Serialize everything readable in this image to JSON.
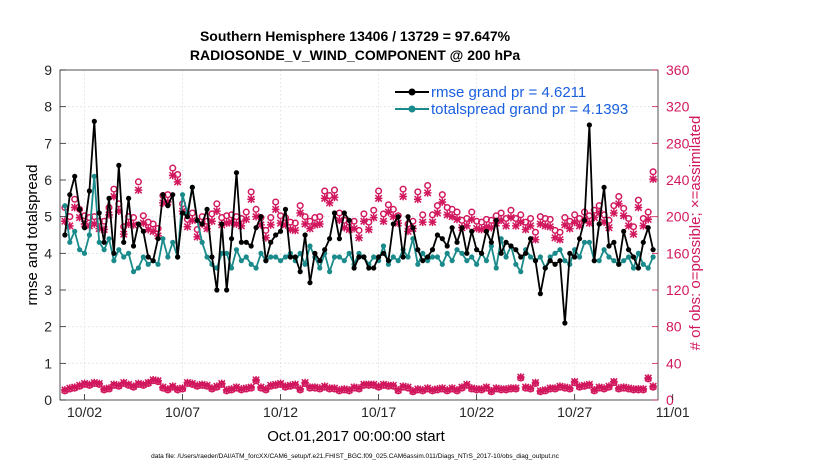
{
  "chart_data": {
    "type": "line",
    "title": "Southern Hemisphere 13406 / 13729 = 97.647%",
    "subtitle": "RADIOSONDE_V_WIND_COMPONENT @ 200 hPa",
    "xlabel": "Oct.01,2017 00:00:00 start",
    "ylabel": "rmse and totalspread",
    "y2label": "# of obs: o=possible; ×=assimilated",
    "footnote": "data file: /Users/raeder/DAI/ATM_forcXX/CAM6_setup/f.e21.FHIST_BGC.f09_025.CAM6assim.011/Diags_NTrS_2017-10/obs_diag_output.nc",
    "xlim": [
      0.75,
      31.25
    ],
    "ylim": [
      0,
      9
    ],
    "y2lim": [
      0,
      360
    ],
    "x_tick_values": [
      2,
      7,
      12,
      17,
      22,
      27,
      32
    ],
    "x_tick_labels": [
      "10/02",
      "10/07",
      "10/12",
      "10/17",
      "10/22",
      "10/27",
      "11/01"
    ],
    "y_ticks": [
      0,
      1,
      2,
      3,
      4,
      5,
      6,
      7,
      8,
      9
    ],
    "y2_ticks": [
      0,
      40,
      80,
      120,
      160,
      200,
      240,
      280,
      320,
      360
    ],
    "colors": {
      "rmse": "#000000",
      "spread": "#1a8a8a",
      "obs": "#d1185e",
      "legend_text": "#1a5fe0"
    },
    "x": [
      1.0,
      1.25,
      1.5,
      1.75,
      2.0,
      2.25,
      2.5,
      2.75,
      3.0,
      3.25,
      3.5,
      3.75,
      4.0,
      4.25,
      4.5,
      4.75,
      5.0,
      5.25,
      5.5,
      5.75,
      6.0,
      6.25,
      6.5,
      6.75,
      7.0,
      7.25,
      7.5,
      7.75,
      8.0,
      8.25,
      8.5,
      8.75,
      9.0,
      9.25,
      9.5,
      9.75,
      10.0,
      10.25,
      10.5,
      10.75,
      11.0,
      11.25,
      11.5,
      11.75,
      12.0,
      12.25,
      12.5,
      12.75,
      13.0,
      13.25,
      13.5,
      13.75,
      14.0,
      14.25,
      14.5,
      14.75,
      15.0,
      15.25,
      15.5,
      15.75,
      16.0,
      16.25,
      16.5,
      16.75,
      17.0,
      17.25,
      17.5,
      17.75,
      18.0,
      18.25,
      18.5,
      18.75,
      19.0,
      19.25,
      19.5,
      19.75,
      20.0,
      20.25,
      20.5,
      20.75,
      21.0,
      21.25,
      21.5,
      21.75,
      22.0,
      22.25,
      22.5,
      22.75,
      23.0,
      23.25,
      23.5,
      23.75,
      24.0,
      24.25,
      24.5,
      24.75,
      25.0,
      25.25,
      25.5,
      25.75,
      26.0,
      26.25,
      26.5,
      26.75,
      27.0,
      27.25,
      27.5,
      27.75,
      28.0,
      28.25,
      28.5,
      28.75,
      29.0,
      29.25,
      29.5,
      29.75,
      30.0,
      30.25,
      30.5,
      30.75,
      31.0
    ],
    "series": [
      {
        "name": "rmse grand pr = 4.6211",
        "values": [
          4.5,
          5.6,
          6.1,
          5.2,
          4.7,
          5.7,
          7.6,
          5.1,
          4.3,
          5.5,
          4.0,
          6.4,
          4.3,
          5.5,
          4.2,
          4.8,
          4.6,
          3.9,
          3.8,
          4.4,
          5.6,
          5.3,
          5.6,
          3.9,
          5.1,
          5.0,
          5.8,
          4.9,
          4.8,
          5.2,
          3.9,
          3.0,
          4.8,
          3.0,
          4.4,
          6.2,
          4.3,
          4.3,
          4.2,
          4.7,
          5.0,
          3.8,
          4.3,
          4.5,
          4.6,
          5.2,
          3.9,
          3.9,
          3.5,
          4.5,
          3.2,
          4.0,
          3.8,
          4.1,
          4.4,
          5.1,
          4.4,
          5.1,
          4.9,
          3.6,
          3.9,
          3.9,
          3.6,
          3.6,
          3.9,
          4.0,
          3.8,
          4.8,
          5.0,
          3.9,
          5.0,
          4.7,
          4.1,
          3.8,
          3.9,
          4.1,
          4.5,
          4.4,
          4.2,
          4.7,
          4.3,
          4.7,
          4.0,
          4.6,
          4.1,
          4.0,
          4.6,
          4.3,
          4.9,
          4.0,
          4.3,
          4.2,
          4.1,
          3.9,
          4.0,
          4.4,
          3.8,
          2.9,
          3.6,
          3.8,
          3.7,
          3.8,
          2.1,
          4.0,
          3.9,
          4.4,
          4.9,
          7.5,
          3.8,
          4.8,
          5.8,
          4.2,
          4.3,
          3.7,
          4.6,
          4.1,
          3.9,
          3.6,
          4.3,
          4.7,
          4.1
        ]
      },
      {
        "name": "totalspread grand pr = 4.1393",
        "values": [
          5.3,
          4.3,
          4.6,
          4.1,
          4.0,
          4.5,
          6.1,
          4.3,
          4.1,
          4.4,
          3.8,
          4.1,
          3.9,
          4.0,
          3.5,
          3.6,
          3.9,
          3.7,
          3.8,
          3.7,
          4.4,
          3.9,
          4.3,
          3.9,
          5.6,
          5.1,
          5.8,
          4.9,
          4.3,
          3.9,
          3.7,
          3.6,
          4.0,
          4.0,
          3.6,
          4.1,
          3.8,
          3.9,
          3.7,
          3.6,
          4.0,
          3.8,
          3.9,
          3.9,
          3.8,
          3.9,
          4.0,
          3.8,
          4.0,
          3.7,
          4.2,
          3.9,
          3.6,
          4.0,
          3.5,
          3.9,
          3.9,
          3.8,
          4.0,
          3.7,
          4.0,
          3.9,
          3.7,
          3.9,
          3.8,
          4.2,
          3.7,
          3.9,
          3.8,
          4.1,
          3.9,
          4.4,
          3.7,
          4.0,
          3.8,
          3.9,
          3.9,
          3.7,
          4.0,
          3.8,
          4.1,
          4.0,
          3.8,
          3.9,
          3.7,
          4.0,
          3.8,
          4.2,
          3.6,
          4.4,
          3.9,
          4.2,
          3.7,
          3.5,
          4.1,
          3.9,
          3.8,
          3.9,
          3.6,
          3.9,
          4.0,
          4.1,
          3.8,
          3.7,
          4.1,
          3.9,
          4.3,
          4.3,
          3.8,
          3.8,
          4.1,
          3.9,
          3.8,
          3.7,
          3.8,
          3.9,
          3.6,
          4.0,
          3.7,
          3.6,
          3.9
        ]
      }
    ],
    "obs_possible": [
      210,
      200,
      219,
      208,
      201,
      199,
      200,
      195,
      195,
      210,
      230,
      214,
      189,
      200,
      199,
      238,
      201,
      194,
      192,
      187,
      223,
      224,
      253,
      246,
      214,
      197,
      204,
      186,
      200,
      195,
      203,
      214,
      199,
      201,
      202,
      200,
      198,
      205,
      227,
      208,
      199,
      185,
      199,
      216,
      201,
      199,
      194,
      193,
      212,
      200,
      195,
      199,
      200,
      228,
      223,
      229,
      204,
      196,
      194,
      195,
      185,
      203,
      194,
      207,
      228,
      203,
      213,
      208,
      201,
      230,
      192,
      195,
      227,
      202,
      234,
      202,
      212,
      224,
      210,
      208,
      205,
      196,
      198,
      205,
      195,
      194,
      197,
      196,
      201,
      204,
      198,
      207,
      198,
      202,
      194,
      198,
      183,
      200,
      198,
      197,
      185,
      183,
      199,
      195,
      202,
      198,
      205,
      201,
      207,
      212,
      202,
      196,
      212,
      222,
      209,
      198,
      189,
      218,
      198,
      205,
      249
    ],
    "obs_assimilated": [
      195,
      190,
      210,
      199,
      192,
      190,
      192,
      187,
      186,
      202,
      222,
      206,
      181,
      192,
      191,
      229,
      193,
      186,
      184,
      179,
      215,
      216,
      245,
      238,
      206,
      189,
      196,
      178,
      192,
      187,
      195,
      206,
      191,
      193,
      194,
      192,
      190,
      197,
      219,
      200,
      191,
      177,
      191,
      208,
      193,
      191,
      186,
      185,
      204,
      192,
      187,
      191,
      192,
      220,
      215,
      221,
      196,
      188,
      186,
      187,
      177,
      195,
      186,
      199,
      220,
      195,
      205,
      200,
      193,
      222,
      184,
      187,
      219,
      194,
      226,
      194,
      204,
      216,
      202,
      200,
      197,
      188,
      190,
      197,
      187,
      186,
      189,
      188,
      193,
      196,
      190,
      199,
      190,
      194,
      186,
      190,
      175,
      192,
      190,
      189,
      177,
      175,
      191,
      187,
      194,
      190,
      197,
      193,
      199,
      204,
      194,
      188,
      204,
      214,
      201,
      190,
      181,
      210,
      190,
      197,
      241
    ],
    "obs_bottom_possible": [
      10,
      12,
      13,
      15,
      17,
      16,
      18,
      17,
      11,
      12,
      16,
      15,
      18,
      16,
      14,
      17,
      16,
      18,
      21,
      20,
      13,
      11,
      14,
      11,
      12,
      18,
      17,
      15,
      16,
      15,
      12,
      14,
      17,
      10,
      11,
      13,
      11,
      12,
      13,
      21,
      13,
      11,
      15,
      16,
      17,
      14,
      15,
      16,
      11,
      18,
      13,
      13,
      12,
      14,
      12,
      12,
      10,
      11,
      10,
      13,
      12,
      16,
      16,
      16,
      14,
      16,
      15,
      15,
      10,
      14,
      13,
      9,
      11,
      10,
      12,
      10,
      11,
      12,
      10,
      12,
      10,
      13,
      16,
      12,
      11,
      11,
      13,
      9,
      12,
      11,
      11,
      12,
      12,
      24,
      13,
      12,
      18,
      9,
      10,
      12,
      12,
      14,
      13,
      12,
      19,
      14,
      15,
      16,
      10,
      13,
      12,
      14,
      19,
      12,
      13,
      12,
      11,
      11,
      11,
      23,
      14
    ],
    "obs_bottom_assimilated": [
      11,
      13,
      14,
      16,
      18,
      17,
      19,
      18,
      12,
      13,
      17,
      16,
      19,
      17,
      15,
      18,
      17,
      19,
      22,
      21,
      14,
      12,
      15,
      12,
      13,
      19,
      18,
      16,
      17,
      16,
      13,
      15,
      18,
      11,
      12,
      14,
      12,
      13,
      14,
      22,
      14,
      12,
      16,
      17,
      18,
      15,
      16,
      17,
      12,
      19,
      14,
      14,
      13,
      15,
      13,
      13,
      11,
      12,
      11,
      14,
      13,
      17,
      17,
      17,
      15,
      17,
      16,
      16,
      11,
      15,
      14,
      10,
      12,
      11,
      13,
      11,
      12,
      13,
      11,
      13,
      11,
      14,
      17,
      13,
      12,
      12,
      14,
      10,
      13,
      12,
      12,
      13,
      13,
      25,
      14,
      13,
      19,
      10,
      11,
      13,
      13,
      15,
      14,
      13,
      20,
      15,
      16,
      17,
      11,
      14,
      13,
      15,
      20,
      13,
      14,
      13,
      12,
      12,
      12,
      24,
      15
    ]
  }
}
